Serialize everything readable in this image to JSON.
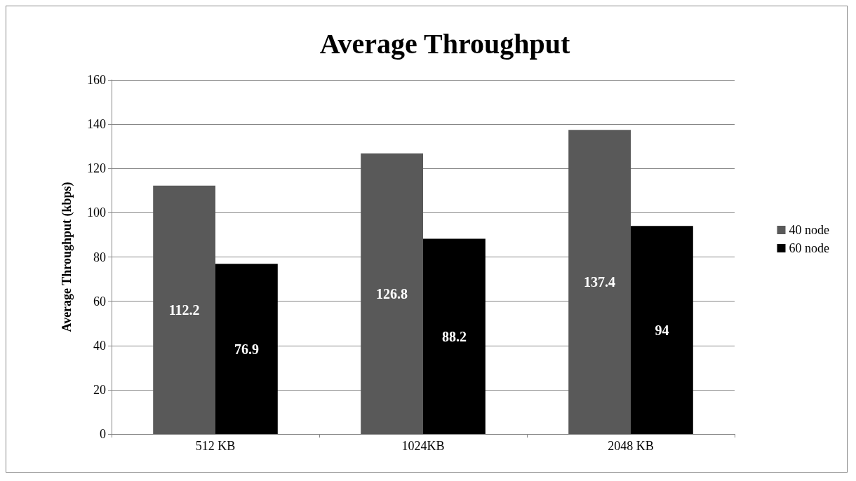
{
  "chart_data": {
    "type": "bar",
    "title": "Average Throughput",
    "ylabel": "Average Throughput (kbps)",
    "categories": [
      "512 KB",
      "1024KB",
      "2048 KB"
    ],
    "series": [
      {
        "name": "40 node",
        "color": "#595959",
        "values": [
          112.2,
          126.8,
          137.4
        ]
      },
      {
        "name": "60 node",
        "color": "#000000",
        "values": [
          76.9,
          88.2,
          94
        ]
      }
    ],
    "ylim": [
      0,
      160
    ],
    "yticks": [
      0,
      20,
      40,
      60,
      80,
      100,
      120,
      140,
      160
    ],
    "grid": "y",
    "legend": "right",
    "data_labels": true
  }
}
